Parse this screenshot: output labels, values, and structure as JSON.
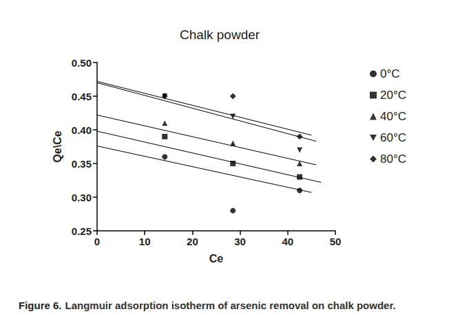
{
  "chart_data": {
    "type": "scatter",
    "title": "Chalk powder",
    "caption_label": "Figure 6.",
    "caption": "Langmuir adsorption isotherm of arsenic removal on chalk powder.",
    "x_label": "Ce",
    "y_label": "Qe\\Ce",
    "xlim": [
      0,
      50
    ],
    "xticks": [
      0,
      10,
      20,
      30,
      40,
      50
    ],
    "ylim": [
      0.25,
      0.5
    ],
    "yticks": [
      0.25,
      {
        "value": 0.3,
        "label": "0.30"
      },
      0.35,
      {
        "value": 0.4,
        "label": "0.40"
      },
      0.45,
      {
        "value": 0.5,
        "label": "0.50"
      }
    ],
    "grid": false,
    "legend": "right",
    "x": [
      14.2,
      28.5,
      42.5
    ],
    "series": [
      {
        "name": "0°C",
        "color": "#000000",
        "marker": "circle",
        "values": [
          0.36,
          0.28,
          0.31
        ],
        "trendline": [
          [
            0,
            0.376
          ],
          [
            45,
            0.307
          ]
        ]
      },
      {
        "name": "20°C",
        "color": "#000000",
        "marker": "square",
        "values": [
          0.39,
          0.35,
          0.33
        ],
        "trendline": [
          [
            0,
            0.398
          ],
          [
            47,
            0.322
          ]
        ]
      },
      {
        "name": "40°C",
        "color": "#000000",
        "marker": "triangle",
        "values": [
          0.41,
          0.38,
          0.35
        ],
        "trendline": [
          [
            0,
            0.422
          ],
          [
            46,
            0.348
          ]
        ]
      },
      {
        "name": "60°C",
        "color": "#000000",
        "marker": "triangle-down",
        "values": [
          0.45,
          0.42,
          0.37
        ],
        "trendline": [
          [
            0,
            0.47
          ],
          [
            46,
            0.383
          ]
        ]
      },
      {
        "name": "80°C",
        "color": "#000000",
        "marker": "diamond",
        "values": [
          0.45,
          0.45,
          0.39
        ],
        "trendline": [
          [
            0,
            0.472
          ],
          [
            45,
            0.392
          ]
        ]
      }
    ]
  }
}
